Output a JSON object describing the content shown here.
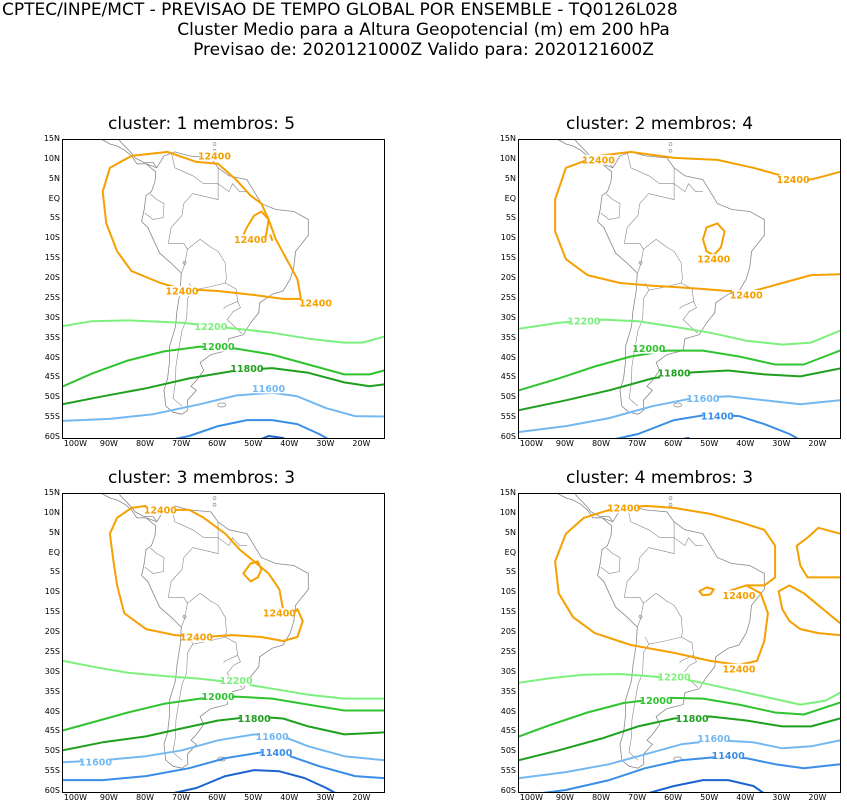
{
  "header": {
    "line1": "CPTEC/INPE/MCT - PREVISAO DE TEMPO GLOBAL POR ENSEMBLE - TQ0126L028",
    "line2": "Cluster Medio para a Altura Geopotencial (m) em 200 hPa",
    "line3": "Previsao de: 2020121000Z   Valido para: 2020121600Z"
  },
  "axes": {
    "lat_ticks": [
      "15N",
      "10N",
      "5N",
      "EQ",
      "5S",
      "10S",
      "15S",
      "20S",
      "25S",
      "30S",
      "35S",
      "40S",
      "45S",
      "50S",
      "55S",
      "60S"
    ],
    "lon_ticks": [
      "100W",
      "90W",
      "80W",
      "70W",
      "60W",
      "50W",
      "40W",
      "30W",
      "20W"
    ]
  },
  "colors": {
    "c12400": "#f5a000",
    "c12200": "#7cf07c",
    "c12000": "#2fc42f",
    "c11800": "#1ea01e",
    "c11600": "#74b8f2",
    "c11400": "#3a8ee6",
    "c11200": "#1c63d0",
    "map": "#888888"
  },
  "panels": [
    {
      "title": "cluster: 1   membros: 5",
      "labels": [
        {
          "text": "12400",
          "color": "#f5a000"
        },
        {
          "text": "12400",
          "color": "#f5a000"
        },
        {
          "text": "12400",
          "color": "#f5a000"
        },
        {
          "text": "12400",
          "color": "#f5a000"
        },
        {
          "text": "12200",
          "color": "#7cf07c"
        },
        {
          "text": "12000",
          "color": "#2fc42f"
        },
        {
          "text": "11800",
          "color": "#1ea01e"
        },
        {
          "text": "11600",
          "color": "#74b8f2"
        }
      ]
    },
    {
      "title": "cluster: 2   membros: 4",
      "labels": [
        {
          "text": "12400",
          "color": "#f5a000"
        },
        {
          "text": "12400",
          "color": "#f5a000"
        },
        {
          "text": "12400",
          "color": "#f5a000"
        },
        {
          "text": "12400",
          "color": "#f5a000"
        },
        {
          "text": "12200",
          "color": "#7cf07c"
        },
        {
          "text": "12000",
          "color": "#2fc42f"
        },
        {
          "text": "11800",
          "color": "#1ea01e"
        },
        {
          "text": "11600",
          "color": "#74b8f2"
        },
        {
          "text": "11400",
          "color": "#3a8ee6"
        }
      ]
    },
    {
      "title": "cluster: 3   membros: 3",
      "labels": [
        {
          "text": "12400",
          "color": "#f5a000"
        },
        {
          "text": "12400",
          "color": "#f5a000"
        },
        {
          "text": "12400",
          "color": "#f5a000"
        },
        {
          "text": "12200",
          "color": "#7cf07c"
        },
        {
          "text": "12000",
          "color": "#2fc42f"
        },
        {
          "text": "11800",
          "color": "#1ea01e"
        },
        {
          "text": "11600",
          "color": "#74b8f2"
        },
        {
          "text": "11400",
          "color": "#3a8ee6"
        },
        {
          "text": "11600",
          "color": "#74b8f2"
        }
      ]
    },
    {
      "title": "cluster: 4   membros: 3",
      "labels": [
        {
          "text": "12400",
          "color": "#f5a000"
        },
        {
          "text": "12400",
          "color": "#f5a000"
        },
        {
          "text": "12400",
          "color": "#f5a000"
        },
        {
          "text": "12200",
          "color": "#7cf07c"
        },
        {
          "text": "12000",
          "color": "#2fc42f"
        },
        {
          "text": "11800",
          "color": "#1ea01e"
        },
        {
          "text": "11600",
          "color": "#74b8f2"
        },
        {
          "text": "11400",
          "color": "#3a8ee6"
        }
      ]
    }
  ]
}
